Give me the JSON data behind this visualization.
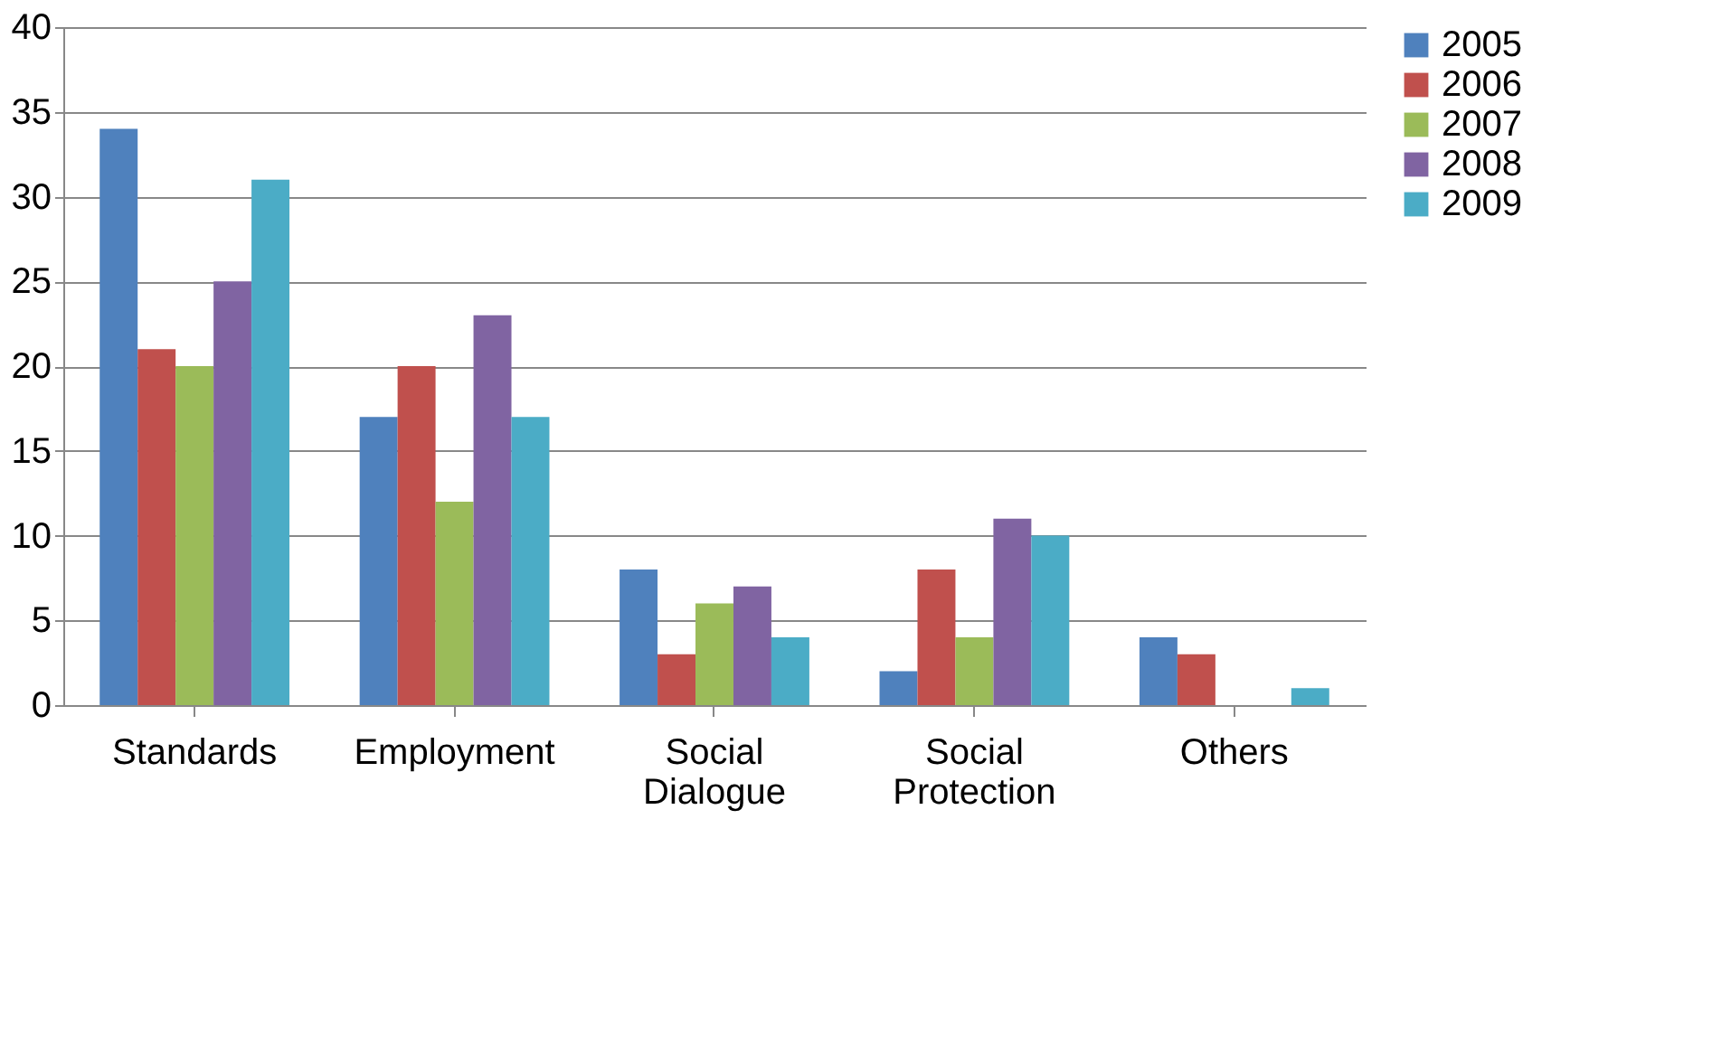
{
  "chart_data": {
    "type": "bar",
    "categories": [
      "Standards",
      "Employment",
      "Social Dialogue",
      "Social Protection",
      "Others"
    ],
    "series": [
      {
        "name": "2005",
        "color": "#4f81bd",
        "values": [
          34,
          17,
          8,
          2,
          4
        ]
      },
      {
        "name": "2006",
        "color": "#c0504d",
        "values": [
          21,
          20,
          3,
          8,
          3
        ]
      },
      {
        "name": "2007",
        "color": "#9bbb59",
        "values": [
          20,
          12,
          6,
          4,
          0
        ]
      },
      {
        "name": "2008",
        "color": "#8064a2",
        "values": [
          25,
          23,
          7,
          11,
          0
        ]
      },
      {
        "name": "2009",
        "color": "#4bacc6",
        "values": [
          31,
          17,
          4,
          10,
          1
        ]
      }
    ],
    "ylim": [
      0,
      40
    ],
    "yticks": [
      0,
      5,
      10,
      15,
      20,
      25,
      30,
      35,
      40
    ],
    "grid": "y",
    "legend": "right"
  }
}
